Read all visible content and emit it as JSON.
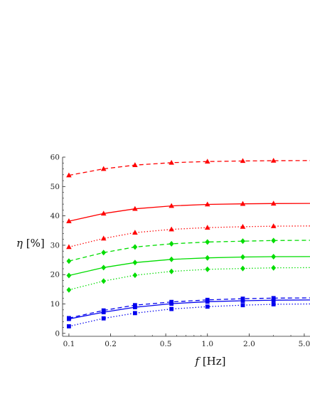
{
  "chart_data": {
    "type": "line",
    "title": "",
    "xlabel": "f [Hz]",
    "ylabel": "η [%]",
    "xscale": "log",
    "xlim": [
      0.09,
      5.5
    ],
    "ylim": [
      -1,
      60
    ],
    "xticks": [
      0.1,
      0.2,
      0.5,
      1.0,
      2.0,
      5.0
    ],
    "xtick_labels": [
      "0.1",
      "0.2",
      "0.5",
      "1.0",
      "2.0",
      "5.0"
    ],
    "yticks": [
      0,
      10,
      20,
      30,
      40,
      50,
      60
    ],
    "ytick_labels": [
      "0",
      "10",
      "20",
      "30",
      "40",
      "50",
      "60"
    ],
    "grid": false,
    "x": [
      0.1,
      0.178,
      0.3,
      0.55,
      1.0,
      1.8,
      3.0
    ],
    "series": [
      {
        "color": "#ff0000",
        "marker": "triangle",
        "dash": "dashed",
        "values": [
          53.8,
          56.0,
          57.3,
          58.1,
          58.5,
          58.7,
          58.8
        ]
      },
      {
        "color": "#ff0000",
        "marker": "triangle",
        "dash": "solid",
        "values": [
          38.2,
          40.8,
          42.4,
          43.4,
          43.9,
          44.1,
          44.2
        ]
      },
      {
        "color": "#ff0000",
        "marker": "triangle",
        "dash": "dotted",
        "values": [
          29.4,
          32.3,
          34.3,
          35.4,
          36.0,
          36.3,
          36.5
        ]
      },
      {
        "color": "#00dd00",
        "marker": "diamond",
        "dash": "dashed",
        "values": [
          24.6,
          27.5,
          29.4,
          30.5,
          31.1,
          31.4,
          31.6
        ]
      },
      {
        "color": "#00dd00",
        "marker": "diamond",
        "dash": "solid",
        "values": [
          19.7,
          22.4,
          24.1,
          25.2,
          25.7,
          26.0,
          26.1
        ]
      },
      {
        "color": "#00dd00",
        "marker": "diamond",
        "dash": "dotted",
        "values": [
          14.8,
          17.8,
          19.8,
          21.1,
          21.8,
          22.1,
          22.3
        ]
      },
      {
        "color": "#0000ee",
        "marker": "square",
        "dash": "dashed",
        "values": [
          5.2,
          7.8,
          9.6,
          10.7,
          11.4,
          11.8,
          12.0
        ]
      },
      {
        "color": "#0000ee",
        "marker": "square",
        "dash": "solid",
        "values": [
          4.9,
          7.2,
          8.9,
          10.1,
          10.8,
          11.1,
          11.3
        ]
      },
      {
        "color": "#0000ee",
        "marker": "square",
        "dash": "dotted",
        "values": [
          2.4,
          5.1,
          6.9,
          8.3,
          9.1,
          9.6,
          9.9
        ]
      }
    ]
  }
}
